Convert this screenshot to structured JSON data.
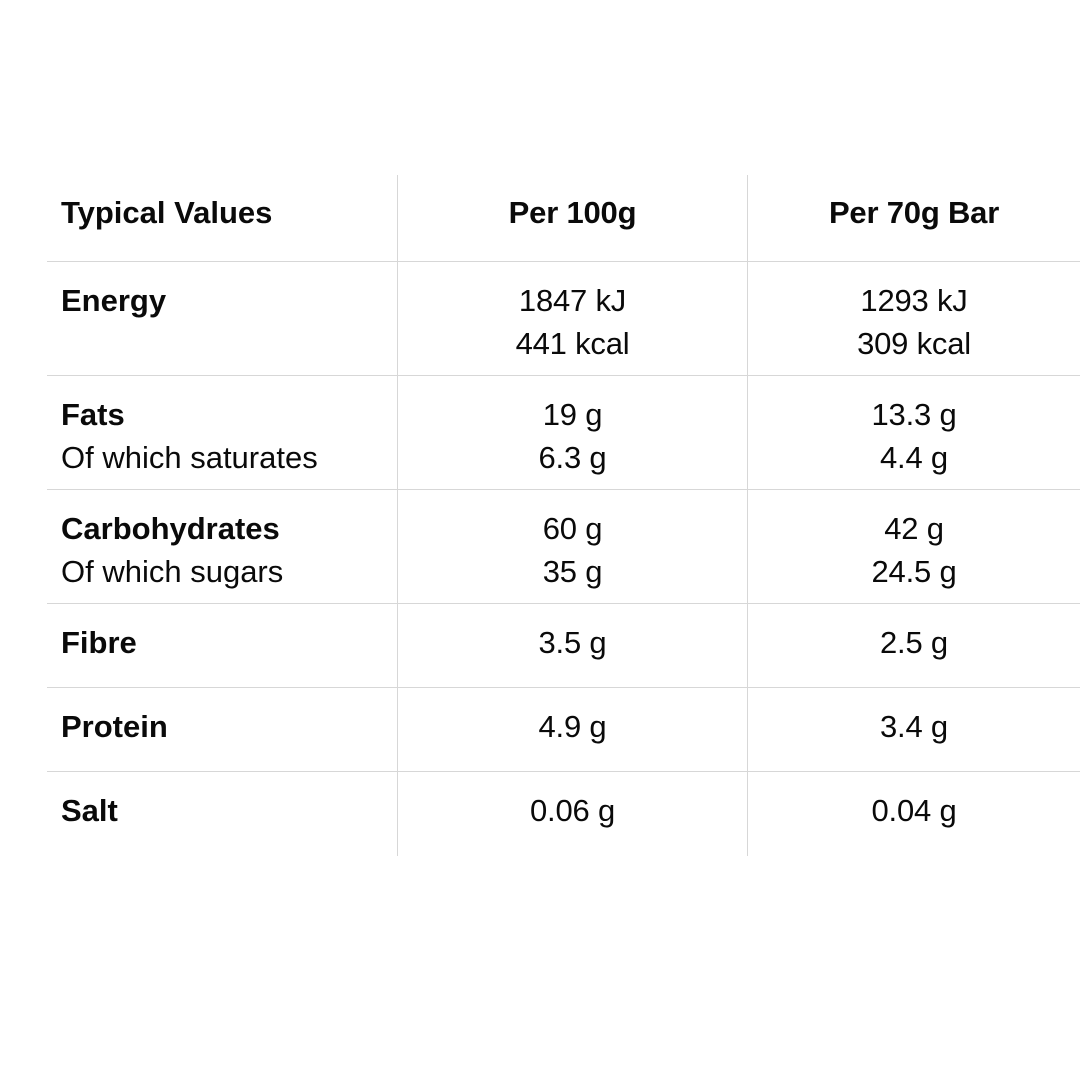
{
  "table": {
    "headers": {
      "nutrient": "Typical Values",
      "per_100g": "Per 100g",
      "per_bar": "Per 70g Bar"
    },
    "rows": [
      {
        "name": "Energy",
        "sub": "",
        "per_100g": [
          "1847 kJ",
          "441 kcal"
        ],
        "per_bar": [
          "1293 kJ",
          "309 kcal"
        ]
      },
      {
        "name": "Fats",
        "sub": "Of which saturates",
        "per_100g": [
          "19 g",
          "6.3 g"
        ],
        "per_bar": [
          "13.3 g",
          "4.4 g"
        ]
      },
      {
        "name": "Carbohydrates",
        "sub": "Of which sugars",
        "per_100g": [
          "60 g",
          "35 g"
        ],
        "per_bar": [
          "42 g",
          "24.5 g"
        ]
      },
      {
        "name": "Fibre",
        "per_100g": [
          "3.5 g"
        ],
        "per_bar": [
          "2.5 g"
        ]
      },
      {
        "name": "Protein",
        "per_100g": [
          "4.9 g"
        ],
        "per_bar": [
          "3.4 g"
        ]
      },
      {
        "name": "Salt",
        "per_100g": [
          "0.06 g"
        ],
        "per_bar": [
          "0.04 g"
        ]
      }
    ]
  },
  "colors": {
    "text": "#0a0a0a",
    "divider": "#d7d7d7",
    "background": "#ffffff"
  }
}
